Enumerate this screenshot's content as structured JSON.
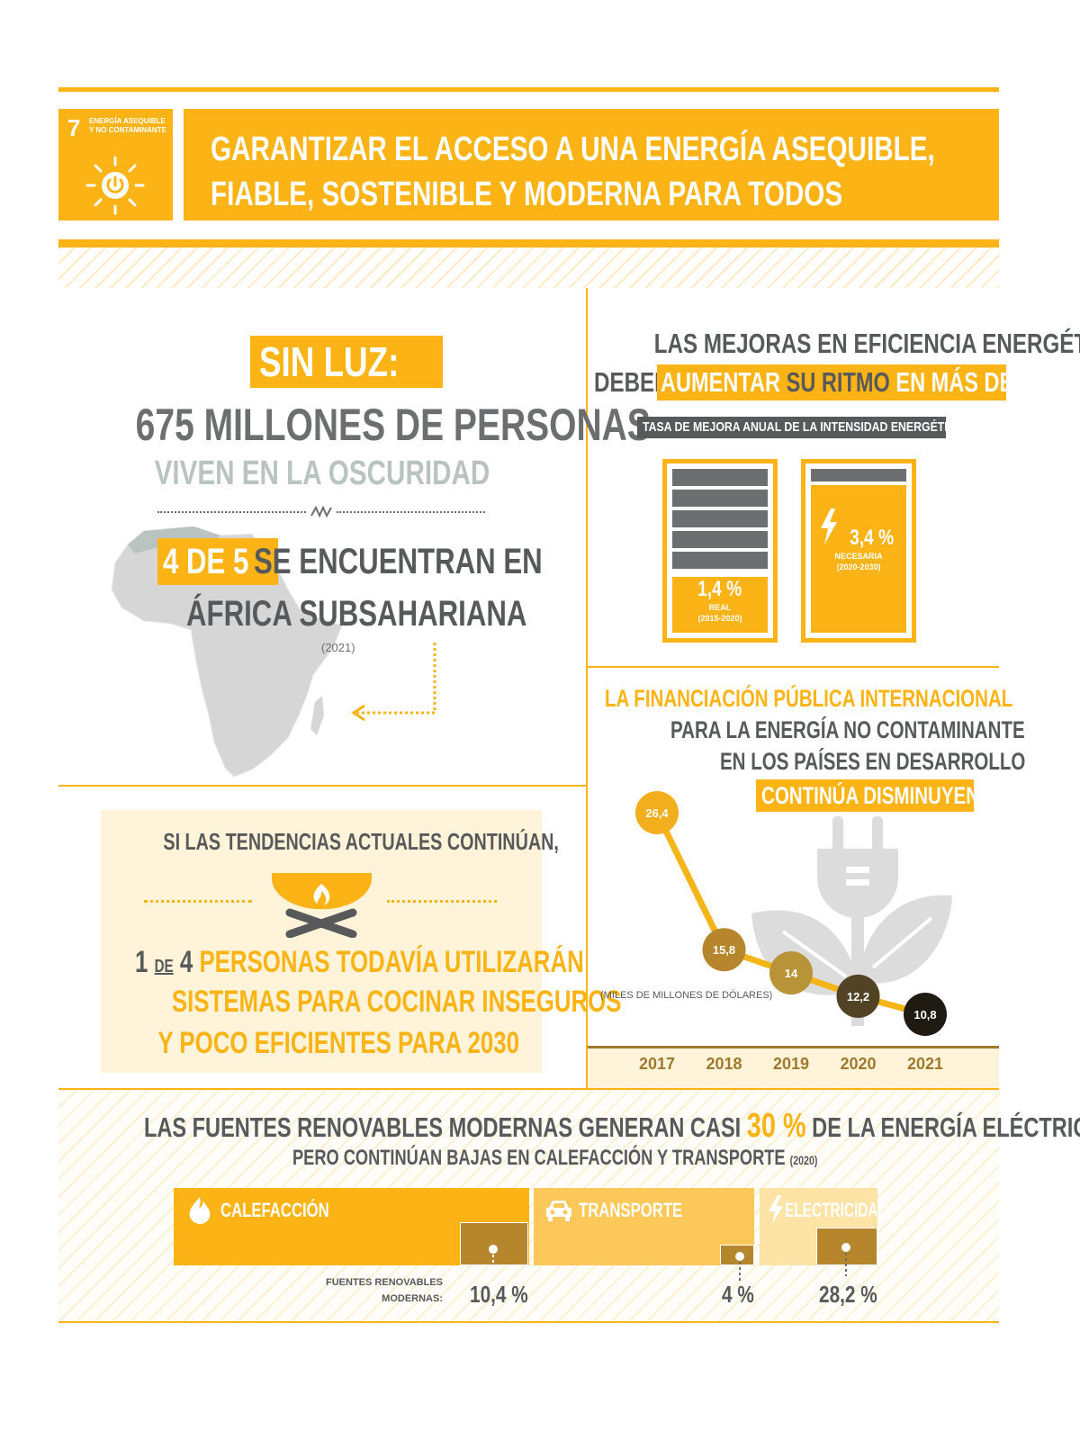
{
  "header": {
    "goal_number": "7",
    "goal_name_line1": "ENERGÍA ASEQUIBLE",
    "goal_name_line2": "Y NO CONTAMINANTE",
    "title_line1": "GARANTIZAR EL ACCESO A UNA ENERGÍA ASEQUIBLE,",
    "title_line2": "FIABLE, SOSTENIBLE Y MODERNA PARA TODOS",
    "icon": "sun-power-icon"
  },
  "darkness": {
    "label": "SIN LUZ:",
    "headline": "675 MILLONES DE PERSONAS",
    "subline": "VIVEN EN LA OSCURIDAD",
    "highlight": "4 DE 5",
    "line1_rest": "SE ENCUENTRAN EN",
    "line2": "ÁFRICA SUBSAHARIANA",
    "year": "(2021)",
    "map_icon": "africa-map-icon"
  },
  "efficiency": {
    "line1": "LAS MEJORAS EN EFICIENCIA ENERGÉTICA",
    "line2_prefix": "DEBEN",
    "line2_highlight_a": "AUMENTAR",
    "line2_highlight_b": "SU RITMO",
    "line2_highlight_c": "EN MÁS DEL DOBLE",
    "chart_caption": "TASA DE MEJORA ANUAL DE LA INTENSIDAD ENERGÉTICA",
    "batteries": [
      {
        "value": "1,4 %",
        "label": "REAL",
        "period": "(2015-2020)",
        "fill": 0.41
      },
      {
        "value": "3,4 %",
        "label": "NECESARIA",
        "period": "(2020-2030)",
        "fill": 1.0
      }
    ]
  },
  "cooking": {
    "intro": "SI LAS TENDENCIAS ACTUALES CONTINÚAN,",
    "n1": "1",
    "de": "DE",
    "n2": "4",
    "line1_rest": "PERSONAS TODAVÍA UTILIZARÁN",
    "line2": "SISTEMAS PARA COCINAR INSEGUROS",
    "line3": "Y POCO EFICIENTES PARA 2030",
    "icon": "cooking-fire-icon"
  },
  "finance": {
    "line1": "LA FINANCIACIÓN PÚBLICA INTERNACIONAL",
    "line2": "PARA LA ENERGÍA NO CONTAMINANTE",
    "line3": "EN LOS PAÍSES EN DESARROLLO",
    "line4": "CONTINÚA DISMINUYENDO",
    "unit_note": "(MILES DE MILLONES DE DÓLARES)",
    "icon": "plug-plant-icon"
  },
  "chart_data": {
    "type": "line",
    "x": [
      "2017",
      "2018",
      "2019",
      "2020",
      "2021"
    ],
    "values": [
      26.4,
      15.8,
      14,
      12.2,
      10.8
    ],
    "labels": [
      "26,4",
      "15,8",
      "14",
      "12,2",
      "10,8"
    ],
    "colors": [
      "#f2ae1c",
      "#b5862b",
      "#b89337",
      "#524325",
      "#1f1a12"
    ],
    "line_color": "#f5b418"
  },
  "renewables": {
    "line1_a": "LAS FUENTES RENOVABLES MODERNAS GENERAN CASI",
    "line1_b": "30 %",
    "line1_c": "DE LA ENERGÍA ELÉCTRICA,",
    "line2": "PERO CONTINÚAN BAJAS EN CALEFACCIÓN Y TRANSPORTE",
    "year": "(2020)",
    "row_label_1": "FUENTES RENOVABLES",
    "row_label_2": "MODERNAS:",
    "sectors": [
      {
        "name": "CALEFACCIÓN",
        "value": "10,4 %",
        "share": 0.104,
        "icon": "flame-icon",
        "color": "#fbb316"
      },
      {
        "name": "TRANSPORTE",
        "value": "4 %",
        "share": 0.04,
        "icon": "car-icon",
        "color": "#fdc85a"
      },
      {
        "name": "ELECTRICIDAD",
        "value": "28,2 %",
        "share": 0.282,
        "icon": "lightning-icon",
        "color": "#fde3a5"
      }
    ]
  }
}
